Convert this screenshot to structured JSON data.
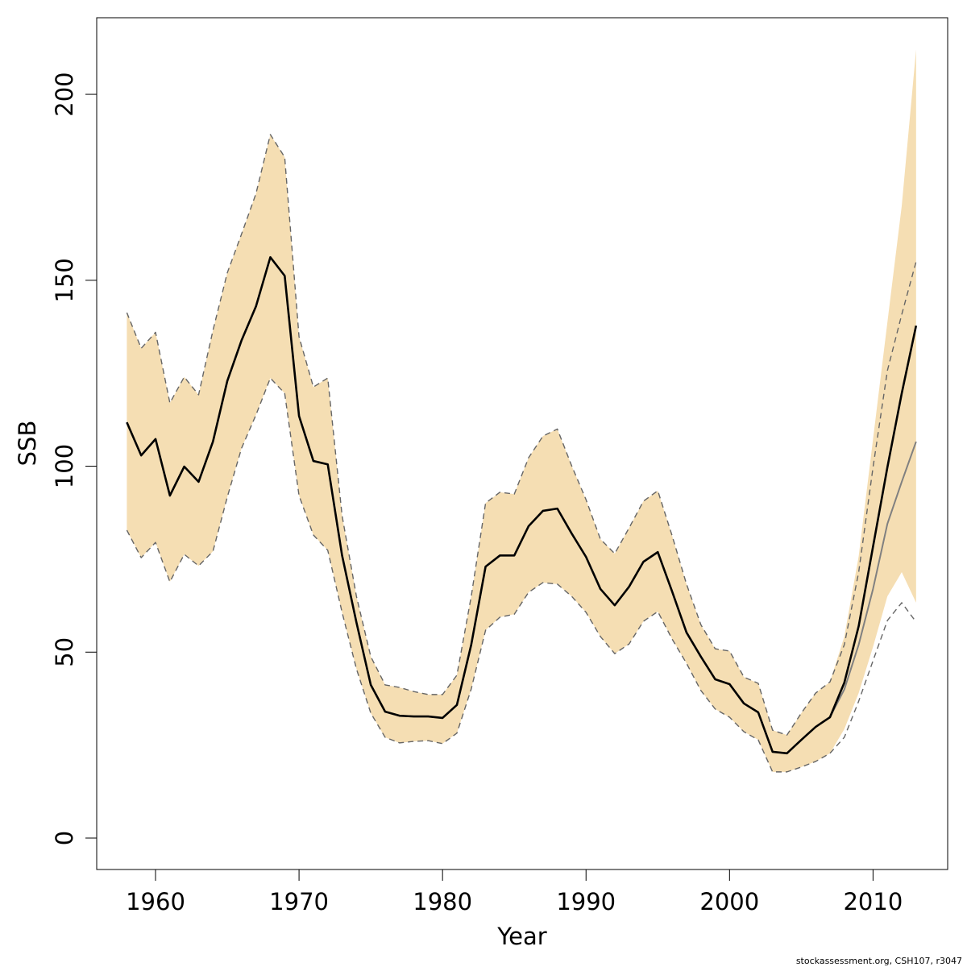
{
  "chart_data": {
    "type": "line",
    "x_label": "Year",
    "y_label": "SSB",
    "footer": "stockassessment.org, CSH107, r3047",
    "xlim": [
      1955.9,
      2015.2
    ],
    "ylim": [
      -8.45,
      220.6
    ],
    "xticks": [
      1960,
      1970,
      1980,
      1990,
      2000,
      2010
    ],
    "yticks": [
      0,
      50,
      100,
      150,
      200
    ],
    "x": [
      1958,
      1959,
      1960,
      1961,
      1962,
      1963,
      1964,
      1965,
      1966,
      1967,
      1968,
      1969,
      1970,
      1971,
      1972,
      1973,
      1974,
      1975,
      1976,
      1977,
      1978,
      1979,
      1980,
      1981,
      1982,
      1983,
      1984,
      1985,
      1986,
      1987,
      1988,
      1989,
      1990,
      1991,
      1992,
      1993,
      1994,
      1995,
      1996,
      1997,
      1998,
      1999,
      2000,
      2001,
      2002,
      2003,
      2004,
      2005,
      2006,
      2007,
      2008,
      2009,
      2010,
      2011,
      2012,
      2013
    ],
    "band": {
      "color": "#f5deb3",
      "upper": [
        141.3,
        131.7,
        136,
        117,
        124,
        119.2,
        136.5,
        152,
        162.5,
        173.3,
        189.2,
        183.1,
        134.8,
        121.3,
        123.7,
        86.7,
        65,
        48.8,
        41.2,
        40.5,
        39.4,
        38.6,
        38.6,
        43.8,
        65,
        90.1,
        93,
        92.5,
        102.3,
        108.1,
        110,
        100.1,
        91,
        80.4,
        76.5,
        83.4,
        90.6,
        93.4,
        81.3,
        68.3,
        57.4,
        50.9,
        50.3,
        43.3,
        41.6,
        29,
        27.7,
        33.6,
        39,
        42,
        54.2,
        75.8,
        107.3,
        138.7,
        170,
        212
      ],
      "lower": [
        82.8,
        75.4,
        79.5,
        68.9,
        76.3,
        73.2,
        77.1,
        91.7,
        104.9,
        113.8,
        123.7,
        119.6,
        92.1,
        81.5,
        77.4,
        60.7,
        45.5,
        33.6,
        27.1,
        25.6,
        26,
        26.2,
        25.4,
        28.2,
        40.1,
        55.9,
        59.4,
        60.2,
        66.1,
        68.7,
        68.3,
        65,
        60.7,
        54.2,
        49.6,
        52.2,
        58.3,
        60.9,
        53.5,
        47,
        39.7,
        34.7,
        32.5,
        28.6,
        26.4,
        17.8,
        17.8,
        19.1,
        20.6,
        22.8,
        29.3,
        39,
        51.4,
        65,
        71.5,
        63.3
      ]
    },
    "series": [
      {
        "color": "#666666",
        "dashed": true,
        "width": 1.4,
        "values": [
          141.3,
          131.7,
          136,
          117,
          124,
          119.2,
          136.5,
          152,
          162.5,
          173.3,
          189.2,
          183.1,
          134.8,
          121.3,
          123.7,
          86.7,
          65,
          48.8,
          41.2,
          40.5,
          39.4,
          38.6,
          38.6,
          43.8,
          65,
          90.1,
          93,
          92.5,
          102.3,
          108.1,
          110,
          100.1,
          91,
          80.4,
          76.5,
          83.4,
          90.6,
          93.4,
          81.3,
          68.3,
          57.4,
          50.9,
          50.3,
          43.3,
          41.6,
          29,
          27.7,
          33.6,
          39,
          42,
          52,
          71.5,
          99.7,
          125.7,
          140.8,
          155
        ]
      },
      {
        "color": "#666666",
        "dashed": true,
        "width": 1.4,
        "values": [
          82.8,
          75.4,
          79.5,
          68.9,
          76.3,
          73.2,
          77.1,
          91.7,
          104.9,
          113.8,
          123.7,
          119.6,
          92.1,
          81.5,
          77.4,
          60.7,
          45.5,
          33.6,
          27.1,
          25.6,
          26,
          26.2,
          25.4,
          28.2,
          40.1,
          55.9,
          59.4,
          60.2,
          66.1,
          68.7,
          68.3,
          65,
          60.7,
          54.2,
          49.6,
          52.2,
          58.3,
          60.9,
          53.5,
          47,
          39.7,
          34.7,
          32.5,
          28.6,
          26.4,
          17.8,
          17.8,
          19.1,
          20.6,
          22.8,
          27.1,
          36.8,
          47.7,
          58.5,
          63.3,
          58.1
        ]
      },
      {
        "color": "#808080",
        "dashed": false,
        "width": 2,
        "values": [
          111.8,
          102.9,
          107.3,
          92.1,
          99.9,
          95.8,
          106.6,
          122.9,
          133.9,
          143,
          156.2,
          151.2,
          113.5,
          101.4,
          100.5,
          76,
          58,
          41.2,
          34,
          32.9,
          32.7,
          32.7,
          32.3,
          35.8,
          52,
          73,
          76,
          76,
          83.9,
          88,
          88.6,
          81.9,
          75.6,
          67,
          62.6,
          67.6,
          74.3,
          76.9,
          66.3,
          55.3,
          48.8,
          42.7,
          41.4,
          36.2,
          33.8,
          23.2,
          22.8,
          26.4,
          29.9,
          32.5,
          40,
          52,
          67,
          84.5,
          95.8,
          106.6
        ]
      },
      {
        "color": "#000000",
        "dashed": false,
        "width": 2.6,
        "values": [
          111.8,
          102.9,
          107.3,
          92.1,
          99.9,
          95.8,
          106.6,
          122.9,
          133.9,
          143,
          156.2,
          151.2,
          113.5,
          101.4,
          100.5,
          76,
          58,
          41.2,
          34,
          32.9,
          32.7,
          32.7,
          32.3,
          35.8,
          52,
          73,
          76,
          76,
          83.9,
          88,
          88.6,
          81.9,
          75.6,
          67,
          62.6,
          67.6,
          74.3,
          76.9,
          66.3,
          55.3,
          48.8,
          42.7,
          41.4,
          36.2,
          33.8,
          23.2,
          22.8,
          26.4,
          29.9,
          32.5,
          41.8,
          57,
          78.4,
          99.7,
          119.6,
          137.8
        ]
      }
    ]
  }
}
